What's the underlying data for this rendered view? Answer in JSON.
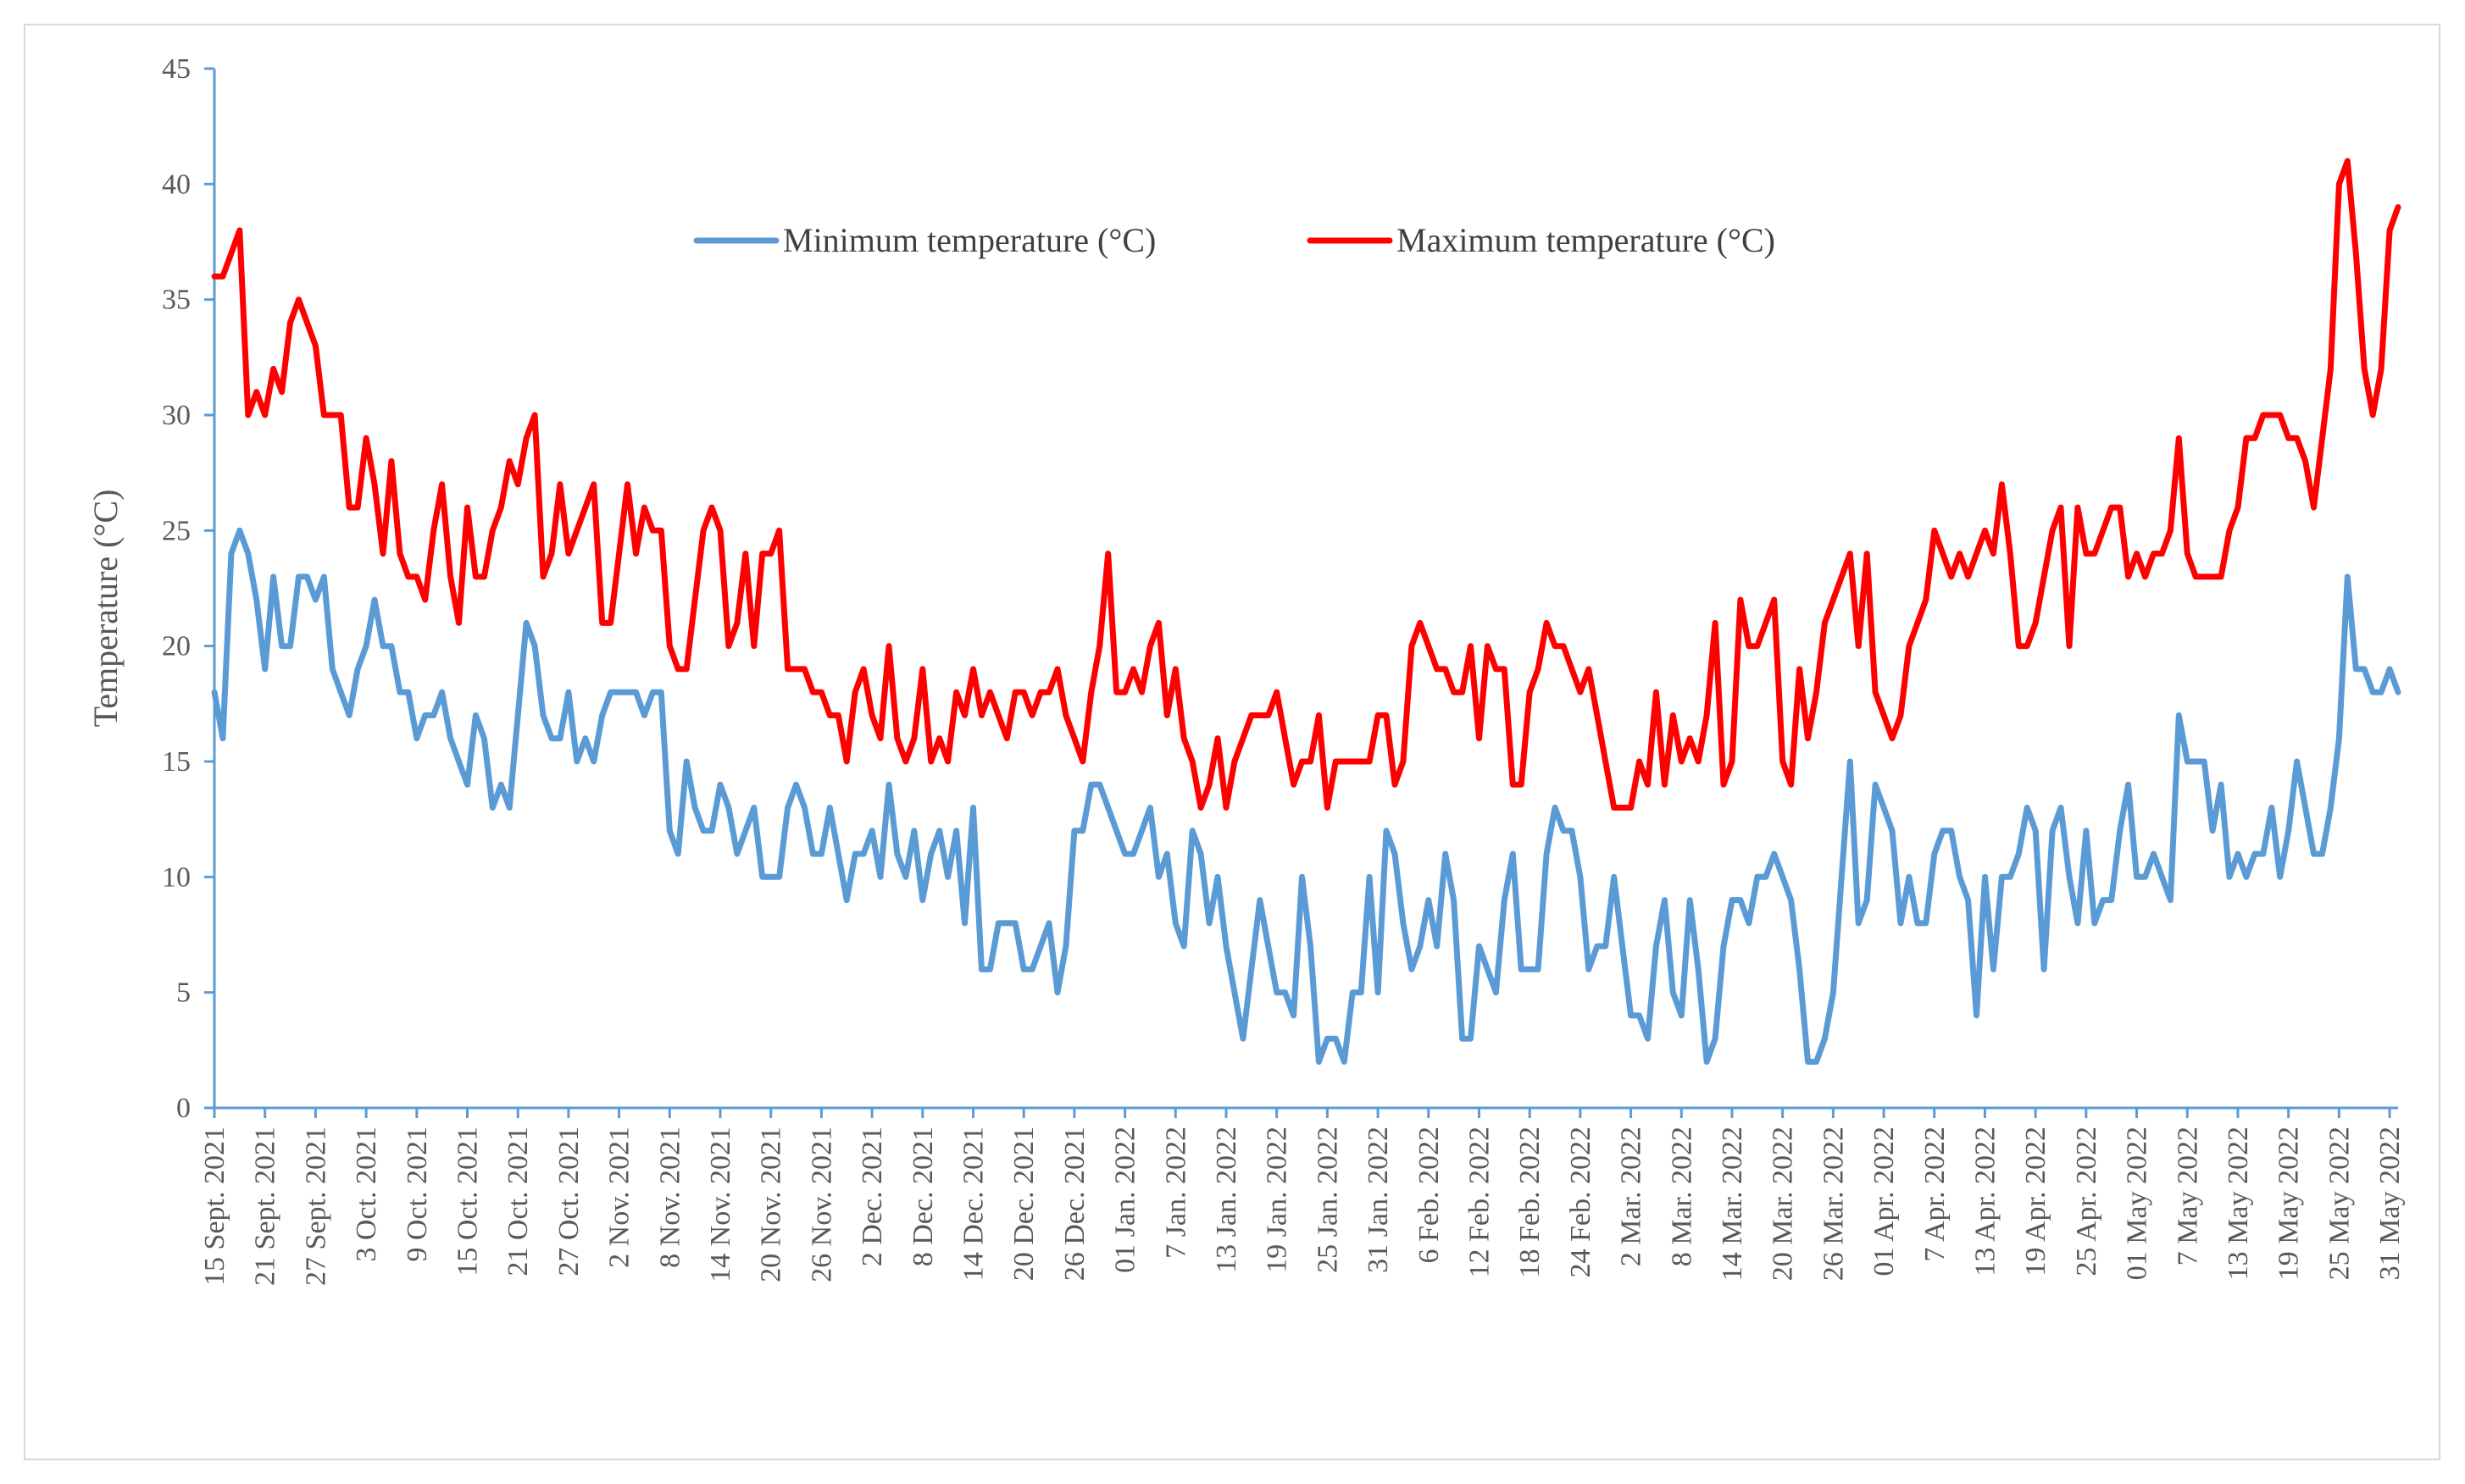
{
  "chart_data": {
    "type": "line",
    "title": "",
    "xlabel": "",
    "ylabel": "Temperature (°C)",
    "ylim": [
      0,
      45
    ],
    "yticks": [
      0,
      5,
      10,
      15,
      20,
      25,
      30,
      35,
      40,
      45
    ],
    "grid": false,
    "legend_position": "top-center",
    "colors": {
      "min": "#5b9bd5",
      "max": "#ff0000",
      "axis": "#5b9bd5",
      "text": "#595959"
    },
    "x_tick_labels": [
      "15 Sept. 2021",
      "21 Sept. 2021",
      "27 Sept. 2021",
      "3 Oct. 2021",
      "9 Oct. 2021",
      "15 Oct. 2021",
      "21 Oct. 2021",
      "27 Oct. 2021",
      "2 Nov. 2021",
      "8 Nov. 2021",
      "14 Nov. 2021",
      "20 Nov. 2021",
      "26 Nov. 2021",
      "2 Dec. 2021",
      "8 Dec. 2021",
      "14 Dec. 2021",
      "20 Dec. 2021",
      "26 Dec. 2021",
      "01 Jan. 2022",
      "7 Jan. 2022",
      "13 Jan. 2022",
      "19 Jan. 2022",
      "25 Jan. 2022",
      "31 Jan. 2022",
      "6 Feb. 2022",
      "12 Feb. 2022",
      "18 Feb. 2022",
      "24 Feb. 2022",
      "2 Mar. 2022",
      "8 Mar. 2022",
      "14 Mar. 2022",
      "20 Mar. 2022",
      "26 Mar. 2022",
      "01 Apr. 2022",
      "7 Apr. 2022",
      "13 Apr. 2022",
      "19 Apr. 2022",
      "25 Apr. 2022",
      "01 May 2022",
      "7 May 2022",
      "13 May 2022",
      "19 May 2022",
      "25 May 2022",
      "31 May 2022"
    ],
    "x_tick_step_days": 6,
    "series": [
      {
        "name": "Minimum temperature (°C)",
        "values": [
          18,
          16,
          24,
          25,
          24,
          22,
          19,
          23,
          20,
          20,
          23,
          23,
          22,
          23,
          19,
          18,
          17,
          19,
          20,
          22,
          20,
          20,
          18,
          18,
          16,
          17,
          17,
          18,
          16,
          15,
          14,
          17,
          16,
          13,
          14,
          13,
          17,
          21,
          20,
          17,
          16,
          16,
          18,
          15,
          16,
          15,
          17,
          18,
          18,
          18,
          18,
          17,
          18,
          18,
          12,
          11,
          15,
          13,
          12,
          12,
          14,
          13,
          11,
          12,
          13,
          10,
          10,
          10,
          13,
          14,
          13,
          11,
          11,
          13,
          11,
          9,
          11,
          11,
          12,
          10,
          14,
          11,
          10,
          12,
          9,
          11,
          12,
          10,
          12,
          8,
          13,
          6,
          6,
          8,
          8,
          8,
          6,
          6,
          7,
          8,
          5,
          7,
          12,
          12,
          14,
          14,
          13,
          12,
          11,
          11,
          12,
          13,
          10,
          11,
          8,
          7,
          12,
          11,
          8,
          10,
          7,
          5,
          3,
          6,
          9,
          7,
          5,
          5,
          4,
          10,
          7,
          2,
          3,
          3,
          2,
          5,
          5,
          10,
          5,
          12,
          11,
          8,
          6,
          7,
          9,
          7,
          11,
          9,
          3,
          3,
          7,
          6,
          5,
          9,
          11,
          6,
          6,
          6,
          11,
          13,
          12,
          12,
          10,
          6,
          7,
          7,
          10,
          7,
          4,
          4,
          3,
          7,
          9,
          5,
          4,
          9,
          6,
          2,
          3,
          7,
          9,
          9,
          8,
          10,
          10,
          11,
          10,
          9,
          6,
          2,
          2,
          3,
          5,
          10,
          15,
          8,
          9,
          14,
          13,
          12,
          8,
          10,
          8,
          8,
          11,
          12,
          12,
          10,
          9,
          4,
          10,
          6,
          10,
          10,
          11,
          13,
          12,
          6,
          12,
          13,
          10,
          8,
          12,
          8,
          9,
          9,
          12,
          14,
          10,
          10,
          11,
          10,
          9,
          17,
          15,
          15,
          15,
          12,
          14,
          10,
          11,
          10,
          11,
          11,
          13,
          10,
          12,
          15,
          13,
          11,
          11,
          13,
          16,
          23,
          19,
          19,
          18,
          18,
          19,
          18
        ]
      },
      {
        "name": "Maximum temperature (°C)",
        "values": [
          36,
          36,
          37,
          38,
          30,
          31,
          30,
          32,
          31,
          34,
          35,
          34,
          33,
          30,
          30,
          30,
          26,
          26,
          29,
          27,
          24,
          28,
          24,
          23,
          23,
          22,
          25,
          27,
          23,
          21,
          26,
          23,
          23,
          25,
          26,
          28,
          27,
          29,
          30,
          23,
          24,
          27,
          24,
          25,
          26,
          27,
          21,
          21,
          24,
          27,
          24,
          26,
          25,
          25,
          20,
          19,
          19,
          22,
          25,
          26,
          25,
          20,
          21,
          24,
          20,
          24,
          24,
          25,
          19,
          19,
          19,
          18,
          18,
          17,
          17,
          15,
          18,
          19,
          17,
          16,
          20,
          16,
          15,
          16,
          19,
          15,
          16,
          15,
          18,
          17,
          19,
          17,
          18,
          17,
          16,
          18,
          18,
          17,
          18,
          18,
          19,
          17,
          16,
          15,
          18,
          20,
          24,
          18,
          18,
          19,
          18,
          20,
          21,
          17,
          19,
          16,
          15,
          13,
          14,
          16,
          13,
          15,
          16,
          17,
          17,
          17,
          18,
          16,
          14,
          15,
          15,
          17,
          13,
          15,
          15,
          15,
          15,
          15,
          17,
          17,
          14,
          15,
          20,
          21,
          20,
          19,
          19,
          18,
          18,
          20,
          16,
          20,
          19,
          19,
          14,
          14,
          18,
          19,
          21,
          20,
          20,
          19,
          18,
          19,
          17,
          15,
          13,
          13,
          13,
          15,
          14,
          18,
          14,
          17,
          15,
          16,
          15,
          17,
          21,
          14,
          15,
          22,
          20,
          20,
          21,
          22,
          15,
          14,
          19,
          16,
          18,
          21,
          22,
          23,
          24,
          20,
          24,
          18,
          17,
          16,
          17,
          20,
          21,
          22,
          25,
          24,
          23,
          24,
          23,
          24,
          25,
          24,
          27,
          24,
          20,
          20,
          21,
          23,
          25,
          26,
          20,
          26,
          24,
          24,
          25,
          26,
          26,
          23,
          24,
          23,
          24,
          24,
          25,
          29,
          24,
          23,
          23,
          23,
          23,
          25,
          26,
          29,
          29,
          30,
          30,
          30,
          29,
          29,
          28,
          26,
          29,
          32,
          40,
          41,
          37,
          32,
          30,
          32,
          38,
          39
        ]
      }
    ]
  }
}
